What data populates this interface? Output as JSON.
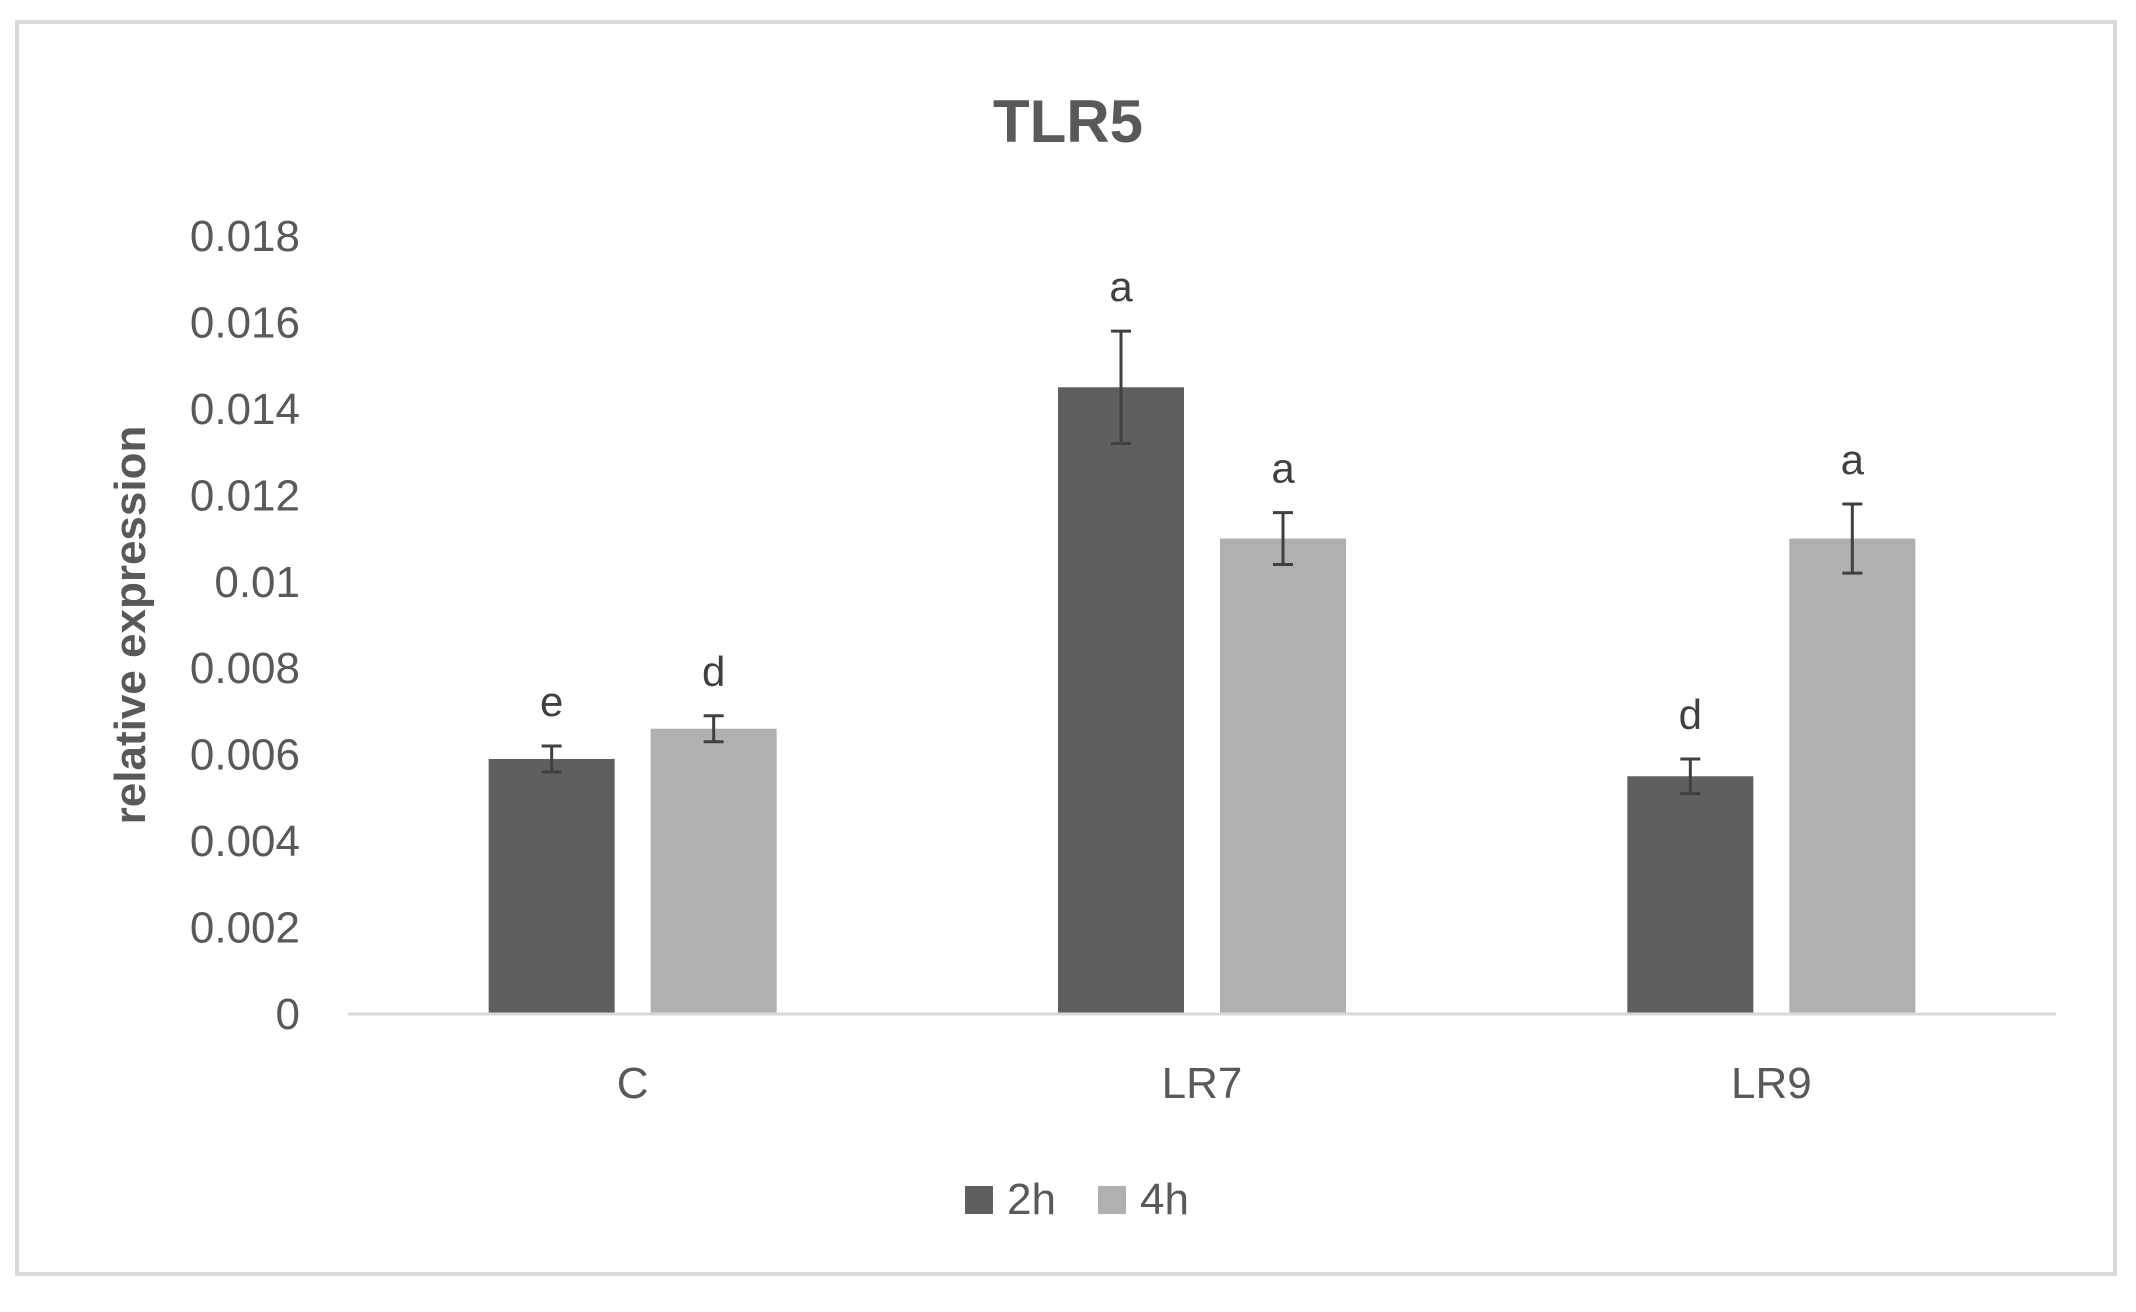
{
  "chart_data": {
    "type": "bar",
    "title": "TLR5",
    "xlabel": "",
    "ylabel": "relative expression",
    "categories": [
      "C",
      "LR7",
      "LR9"
    ],
    "ylim": [
      0,
      0.018
    ],
    "yticks": [
      "0",
      "0.002",
      "0.004",
      "0.006",
      "0.008",
      "0.01",
      "0.012",
      "0.014",
      "0.016",
      "0.018"
    ],
    "grid": false,
    "legend": "bottom",
    "series": [
      {
        "name": "2h",
        "color": "#5f5f5f",
        "values": [
          0.0059,
          0.0145,
          0.0055
        ],
        "errors": [
          0.0003,
          0.0013,
          0.0004
        ],
        "labels": [
          "e",
          "a",
          "d"
        ]
      },
      {
        "name": "4h",
        "color": "#b0b0b0",
        "values": [
          0.0066,
          0.011,
          0.011
        ],
        "errors": [
          0.0003,
          0.0006,
          0.0008
        ],
        "labels": [
          "d",
          "a",
          "a"
        ]
      }
    ]
  }
}
